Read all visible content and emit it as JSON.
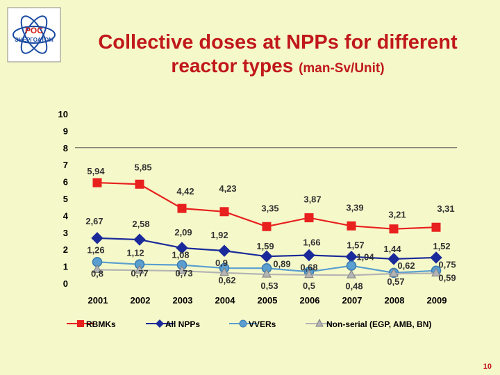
{
  "logo": {
    "text_top": "РОС",
    "text_mid": "ЭНЕРГОАТОМ"
  },
  "title_line1": "Collective doses at NPPs for different",
  "title_line2": "reactor types",
  "title_unit": "(man-Sv/Unit)",
  "page_number": "10",
  "colors": {
    "rbmk": "#e8201e",
    "all": "#1a2a9a",
    "vver": "#5a9fd0",
    "nonserial": "#b4b4b4"
  },
  "chart_data": {
    "type": "line",
    "x": [
      "2001",
      "2002",
      "2003",
      "2004",
      "2005",
      "2006",
      "2007",
      "2008",
      "2009"
    ],
    "ylim": [
      0,
      10
    ],
    "yticks": [
      "0",
      "1",
      "2",
      "3",
      "4",
      "5",
      "6",
      "7",
      "8",
      "9",
      "10"
    ],
    "series": [
      {
        "name": "RBMKs",
        "marker": "square",
        "values": [
          5.94,
          5.85,
          4.42,
          4.23,
          3.35,
          3.87,
          3.39,
          3.21,
          3.31
        ],
        "labels": [
          "5,94",
          "5,85",
          "4,42",
          "4,23",
          "3,35",
          "3,87",
          "3,39",
          "3,21",
          "3,31"
        ]
      },
      {
        "name": "All NPPs",
        "marker": "diamond",
        "values": [
          2.67,
          2.58,
          2.09,
          1.92,
          1.59,
          1.66,
          1.57,
          1.44,
          1.52
        ],
        "labels": [
          "2,67",
          "2,58",
          "2,09",
          "1,92",
          "1,59",
          "1,66",
          "1,57",
          "1,44",
          "1,52"
        ]
      },
      {
        "name": "VVERs",
        "marker": "circle",
        "values": [
          1.26,
          1.12,
          1.08,
          0.9,
          0.89,
          0.68,
          1.04,
          0.62,
          0.75
        ],
        "labels": [
          "1,26",
          "1,12",
          "1,08",
          "0,9",
          "0,89",
          "0,68",
          "1,04",
          "0,62",
          "0,75"
        ]
      },
      {
        "name": "Non-serial (EGP, AMB, BN)",
        "marker": "triangle",
        "values": [
          0.8,
          0.77,
          0.73,
          0.62,
          0.53,
          0.5,
          0.48,
          0.57,
          0.59
        ],
        "labels": [
          "0,8",
          "0,77",
          "0,73",
          "0,62",
          "0,53",
          "0,5",
          "0,48",
          "0,57",
          "0,59"
        ]
      }
    ]
  }
}
